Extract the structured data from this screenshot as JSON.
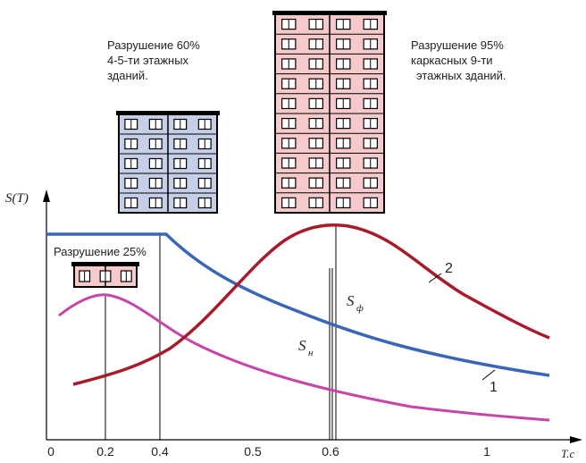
{
  "buildings": {
    "medium": {
      "label": [
        "Разрушение 60%",
        "4-5-ти этажных",
        "зданий."
      ]
    },
    "tall": {
      "label": [
        "Разрушение 95%",
        "каркасных 9-ти",
        "этажных зданий."
      ]
    },
    "small": {
      "label": [
        "Разрушение 25%"
      ]
    }
  },
  "axis": {
    "y_label": "S(T)",
    "x_label": "T.c",
    "x_ticks": [
      "0",
      "0.2",
      "0.4",
      "0.5",
      "0.6",
      "1"
    ]
  },
  "markers": {
    "s_n": {
      "symbol": "S",
      "subscript": "н"
    },
    "s_f": {
      "symbol": "S",
      "subscript": "ф"
    }
  },
  "curve_labels": [
    "1",
    "2"
  ]
}
